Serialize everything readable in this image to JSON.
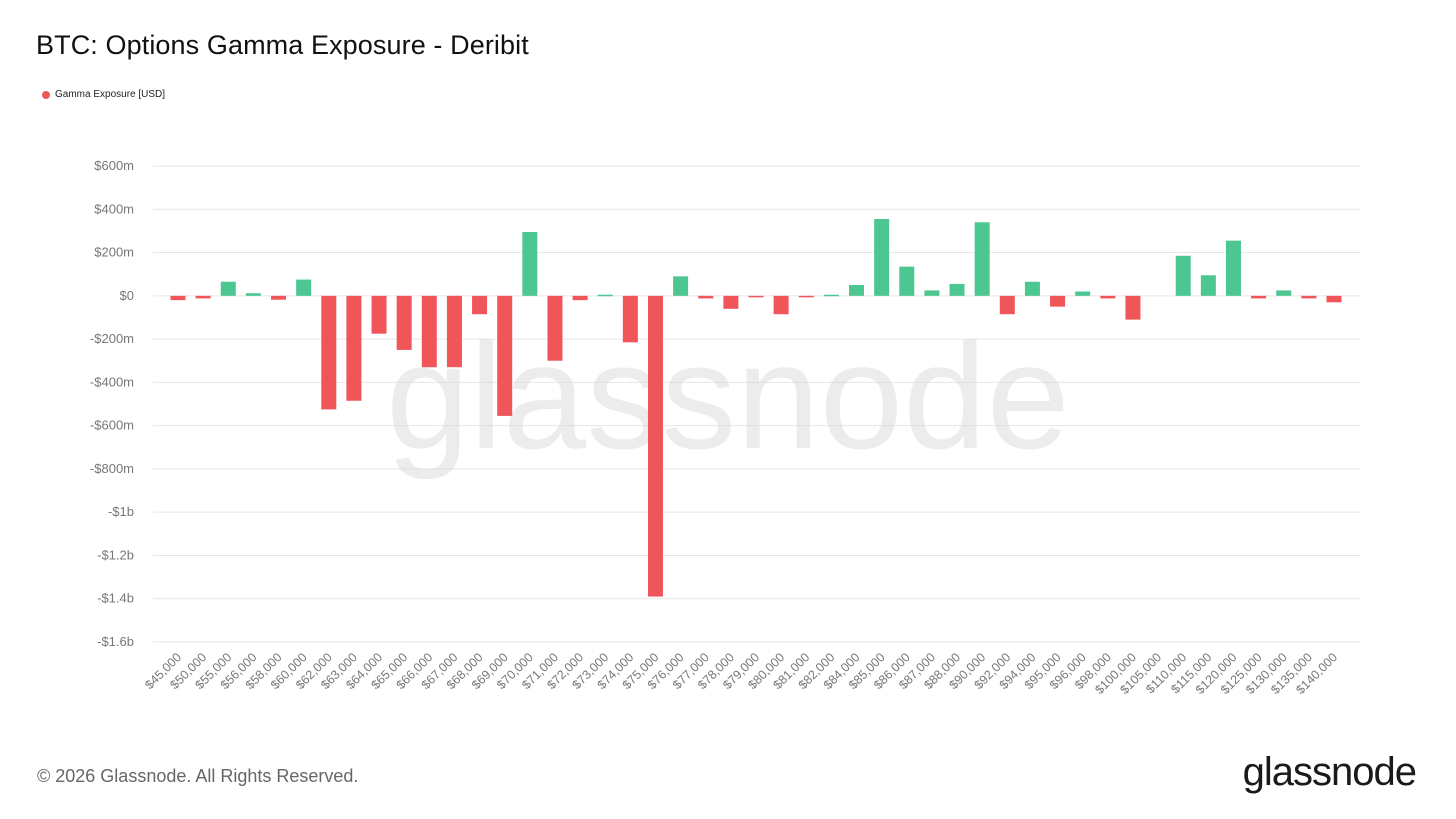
{
  "title": "BTC: Options Gamma Exposure - Deribit",
  "legend_label": "Gamma Exposure [USD]",
  "footer": "© 2026 Glassnode. All Rights Reserved.",
  "logo_text": "glassnode",
  "watermark": "glassnode",
  "colors": {
    "positive": "#4cc792",
    "negative": "#f0555a",
    "grid": "#e6e6e6",
    "axis_text": "#777777"
  },
  "chart_data": {
    "type": "bar",
    "title": "BTC: Options Gamma Exposure - Deribit",
    "xlabel": "",
    "ylabel": "",
    "ylim": [
      -1600,
      600
    ],
    "yunit": "millions USD",
    "grid": true,
    "legend_position": "top-left",
    "y_ticks": [
      {
        "value": 600,
        "label": "$600m"
      },
      {
        "value": 400,
        "label": "$400m"
      },
      {
        "value": 200,
        "label": "$200m"
      },
      {
        "value": 0,
        "label": "$0"
      },
      {
        "value": -200,
        "label": "-$200m"
      },
      {
        "value": -400,
        "label": "-$400m"
      },
      {
        "value": -600,
        "label": "-$600m"
      },
      {
        "value": -800,
        "label": "-$800m"
      },
      {
        "value": -1000,
        "label": "-$1b"
      },
      {
        "value": -1200,
        "label": "-$1.2b"
      },
      {
        "value": -1400,
        "label": "-$1.4b"
      },
      {
        "value": -1600,
        "label": "-$1.6b"
      }
    ],
    "categories": [
      "$45,000",
      "$50,000",
      "$55,000",
      "$56,000",
      "$58,000",
      "$60,000",
      "$62,000",
      "$63,000",
      "$64,000",
      "$65,000",
      "$66,000",
      "$67,000",
      "$68,000",
      "$69,000",
      "$70,000",
      "$71,000",
      "$72,000",
      "$73,000",
      "$74,000",
      "$75,000",
      "$76,000",
      "$77,000",
      "$78,000",
      "$79,000",
      "$80,000",
      "$81,000",
      "$82,000",
      "$84,000",
      "$85,000",
      "$86,000",
      "$87,000",
      "$88,000",
      "$90,000",
      "$92,000",
      "$94,000",
      "$95,000",
      "$96,000",
      "$98,000",
      "$100,000",
      "$105,000",
      "$110,000",
      "$115,000",
      "$120,000",
      "$125,000",
      "$130,000",
      "$135,000",
      "$140,000"
    ],
    "series": [
      {
        "name": "Gamma Exposure [USD]",
        "values": [
          -20,
          -12,
          65,
          12,
          -18,
          75,
          -525,
          -485,
          -175,
          -250,
          -330,
          -330,
          -85,
          -555,
          295,
          -300,
          -20,
          5,
          -215,
          -1390,
          90,
          -12,
          -60,
          -5,
          -85,
          -5,
          5,
          50,
          355,
          135,
          25,
          55,
          340,
          -85,
          65,
          -50,
          20,
          -12,
          -110,
          0,
          185,
          95,
          255,
          -12,
          25,
          -12,
          -30
        ]
      }
    ]
  }
}
